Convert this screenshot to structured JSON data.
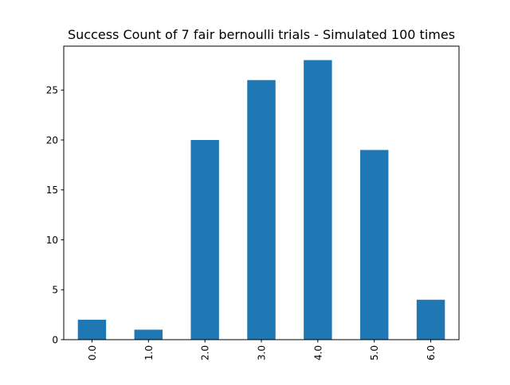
{
  "chart_data": {
    "type": "bar",
    "title": "Success Count of 7 fair bernoulli trials - Simulated 100 times",
    "xlabel": "",
    "ylabel": "",
    "categories": [
      "0.0",
      "1.0",
      "2.0",
      "3.0",
      "4.0",
      "5.0",
      "6.0"
    ],
    "values": [
      2,
      1,
      20,
      26,
      28,
      19,
      4
    ],
    "ylim": [
      0,
      29.4
    ],
    "yticks": [
      0,
      5,
      10,
      15,
      20,
      25
    ],
    "xtick_rotation": "vertical",
    "bar_color": "#1f77b4",
    "grid": false,
    "legend": false
  }
}
